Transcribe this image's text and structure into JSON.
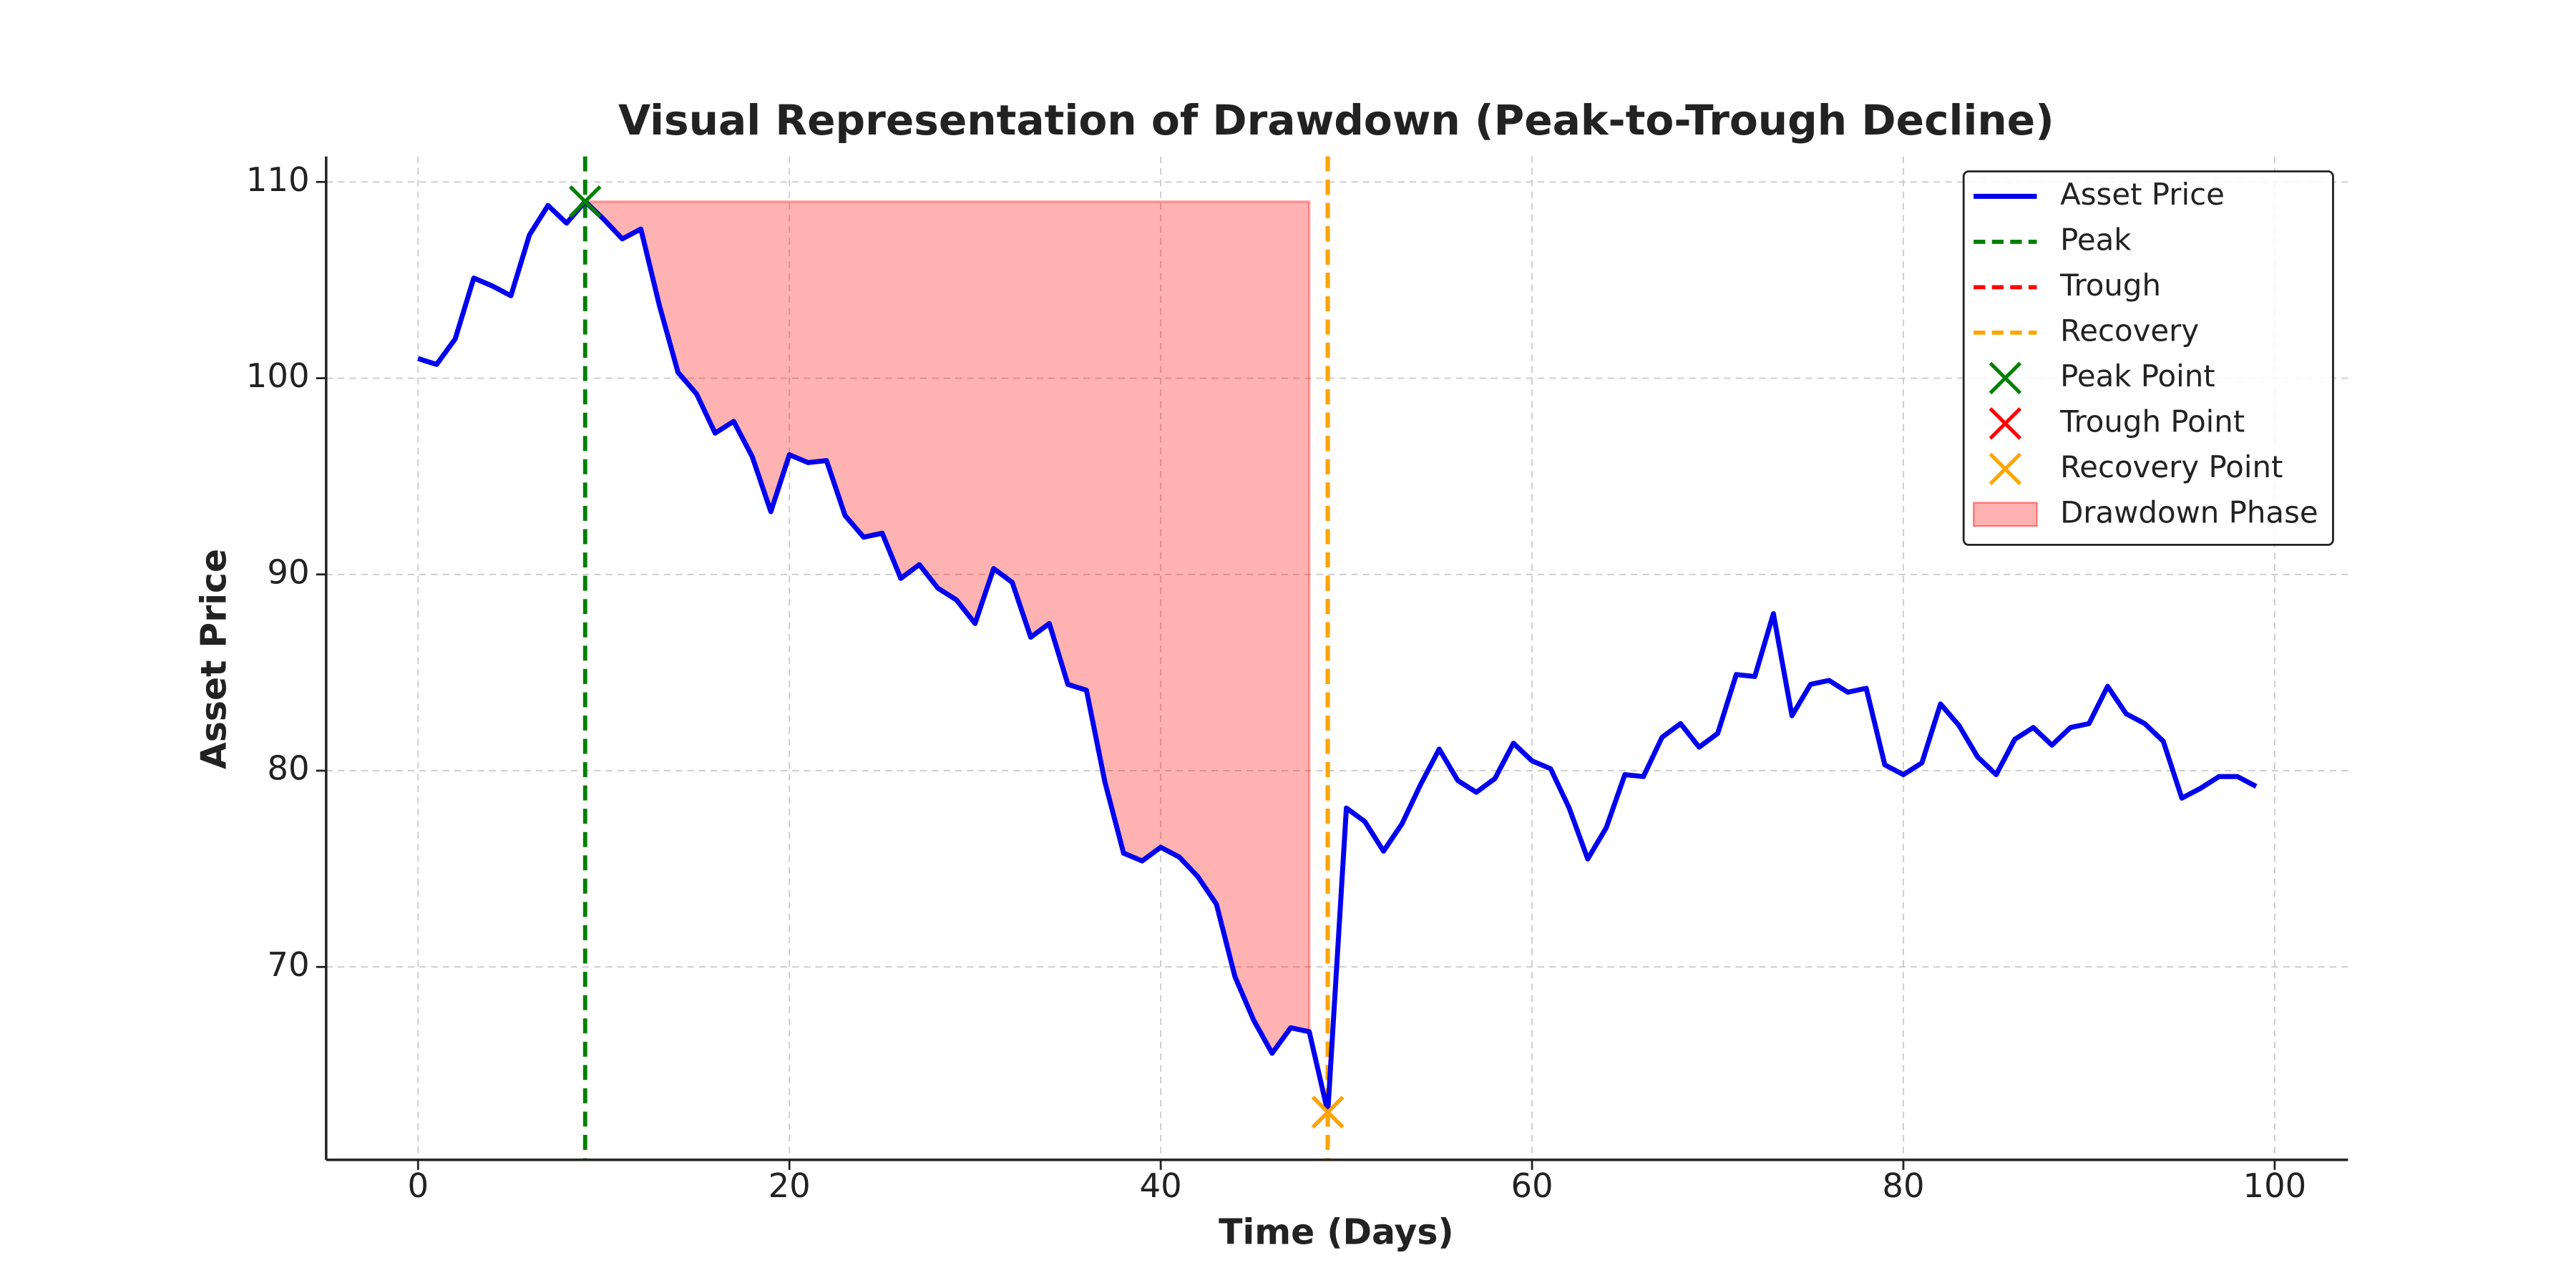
{
  "chart_data": {
    "type": "line",
    "title": "Visual Representation of Drawdown (Peak-to-Trough Decline)",
    "x_label": "Time (Days)",
    "y_label": "Asset Price",
    "xlim": [
      -4.95,
      103.95
    ],
    "ylim": [
      60.17,
      111.3
    ],
    "xticks": [
      0,
      20,
      40,
      60,
      80,
      100
    ],
    "yticks": [
      70,
      80,
      90,
      100,
      110
    ],
    "grid": true,
    "legend": "upper right",
    "series": [
      {
        "name": "Asset Price",
        "kind": "line",
        "color": "#0000ee",
        "x": [
          0,
          1,
          2,
          3,
          4,
          5,
          6,
          7,
          8,
          9,
          10,
          11,
          12,
          13,
          14,
          15,
          16,
          17,
          18,
          19,
          20,
          21,
          22,
          23,
          24,
          25,
          26,
          27,
          28,
          29,
          30,
          31,
          32,
          33,
          34,
          35,
          36,
          37,
          38,
          39,
          40,
          41,
          42,
          43,
          44,
          45,
          46,
          47,
          48,
          49,
          50,
          51,
          52,
          53,
          54,
          55,
          56,
          57,
          58,
          59,
          60,
          61,
          62,
          63,
          64,
          65,
          66,
          67,
          68,
          69,
          70,
          71,
          72,
          73,
          74,
          75,
          76,
          77,
          78,
          79,
          80,
          81,
          82,
          83,
          84,
          85,
          86,
          87,
          88,
          89,
          90,
          91,
          92,
          93,
          94,
          95,
          96,
          97,
          98,
          99
        ],
        "values": [
          101.0,
          100.7,
          102.0,
          105.1,
          104.7,
          104.2,
          107.3,
          108.8,
          107.9,
          109.0,
          108.1,
          107.1,
          107.6,
          103.7,
          100.3,
          99.2,
          97.2,
          97.8,
          96.0,
          93.2,
          96.1,
          95.7,
          95.8,
          93.0,
          91.9,
          92.1,
          89.8,
          90.5,
          89.3,
          88.7,
          87.5,
          90.3,
          89.6,
          86.8,
          87.5,
          84.4,
          84.1,
          79.4,
          75.8,
          75.4,
          76.1,
          75.6,
          74.6,
          73.2,
          69.5,
          67.3,
          65.6,
          66.9,
          66.7,
          62.6,
          78.1,
          77.4,
          75.9,
          77.3,
          79.3,
          81.1,
          79.5,
          78.9,
          79.6,
          81.4,
          80.5,
          80.1,
          78.1,
          75.5,
          77.1,
          79.8,
          79.7,
          81.7,
          82.4,
          81.2,
          81.9,
          84.9,
          84.8,
          88.0,
          82.8,
          84.4,
          84.6,
          84.0,
          84.2,
          80.3,
          79.8,
          80.4,
          83.4,
          82.3,
          80.7,
          79.8,
          81.6,
          82.2,
          81.3,
          82.2,
          82.4,
          84.3,
          82.9,
          82.4,
          81.5,
          78.6,
          79.1,
          79.7,
          79.7,
          79.2
        ]
      },
      {
        "name": "Peak",
        "kind": "vline",
        "color": "#008000",
        "x": 9
      },
      {
        "name": "Trough",
        "kind": "vline",
        "color": "#ff0000",
        "x": 49
      },
      {
        "name": "Recovery",
        "kind": "vline",
        "color": "#ffa500",
        "x": 49
      },
      {
        "name": "Peak Point",
        "kind": "marker",
        "color": "#008000",
        "x": 9,
        "y": 109.0
      },
      {
        "name": "Trough Point",
        "kind": "marker",
        "color": "#ff0000",
        "x": 49,
        "y": 62.6
      },
      {
        "name": "Recovery Point",
        "kind": "marker",
        "color": "#ffa500",
        "x": 49,
        "y": 62.6
      },
      {
        "name": "Drawdown Phase",
        "kind": "area",
        "color": "#ff0000",
        "alpha": 0.3,
        "x": [
          9,
          48
        ],
        "y": 109.0
      }
    ]
  }
}
